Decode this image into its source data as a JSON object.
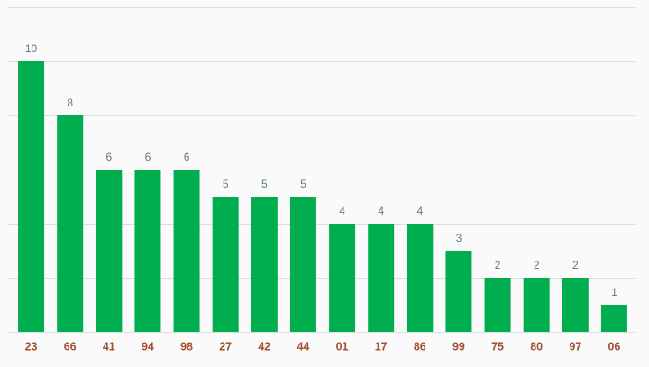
{
  "chart_data": {
    "type": "bar",
    "categories": [
      "23",
      "66",
      "41",
      "94",
      "98",
      "27",
      "42",
      "44",
      "01",
      "17",
      "86",
      "99",
      "75",
      "80",
      "97",
      "06"
    ],
    "values": [
      10,
      8,
      6,
      6,
      6,
      5,
      5,
      5,
      4,
      4,
      4,
      3,
      2,
      2,
      2,
      1
    ],
    "color": "#00ae4f",
    "ylim": [
      0,
      12
    ],
    "yticks": [
      0,
      2,
      4,
      6,
      8,
      10,
      12
    ],
    "grid": true
  }
}
